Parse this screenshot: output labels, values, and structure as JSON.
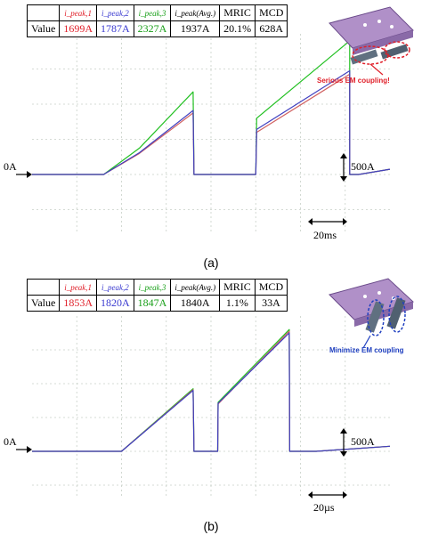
{
  "panels": [
    {
      "id": "a",
      "caption": "(a)",
      "table": {
        "row_label": "Value",
        "headers": [
          "i_peak,1",
          "i_peak,2",
          "i_peak,3",
          "i_peak(Avg.)",
          "MRIC",
          "MCD"
        ],
        "values": [
          "1699A",
          "1787A",
          "2327A",
          "1937A",
          "20.1%",
          "628A"
        ],
        "colors": [
          "#e0202a",
          "#3a3ad0",
          "#1aa01a",
          "#000000",
          "#000000",
          "#000000"
        ]
      },
      "zero_label": "0A",
      "scale_label": "500A",
      "time_label": "20ms",
      "inset_text": "Serious EM coupling!",
      "inset_color": "#e0202a"
    },
    {
      "id": "b",
      "caption": "(b)",
      "table": {
        "row_label": "Value",
        "headers": [
          "i_peak,1",
          "i_peak,2",
          "i_peak,3",
          "i_peak(Avg.)",
          "MRIC",
          "MCD"
        ],
        "values": [
          "1853A",
          "1820A",
          "1847A",
          "1840A",
          "1.1%",
          "33A"
        ],
        "colors": [
          "#e0202a",
          "#3a3ad0",
          "#1aa01a",
          "#000000",
          "#000000",
          "#000000"
        ]
      },
      "zero_label": "0A",
      "scale_label": "500A",
      "time_label": "20µs",
      "inset_text": "Minimize EM coupling",
      "inset_color": "#2040c0"
    }
  ],
  "chart_data": [
    {
      "type": "line",
      "panel": "a",
      "x_units": "divisions",
      "y_units": "divisions",
      "grid": true,
      "series": [
        {
          "color": "#22c022",
          "x": [
            0,
            1.6,
            2.4,
            3.6,
            3.62,
            4.9,
            5.0,
            5.02,
            7.1,
            7.1,
            7.3,
            8.0
          ],
          "y": [
            0,
            0,
            0.75,
            2.35,
            0,
            0,
            0,
            1.6,
            3.8,
            0,
            0,
            0.15
          ]
        },
        {
          "color": "#d06060",
          "x": [
            0,
            1.6,
            2.4,
            3.6,
            3.62,
            4.9,
            5.0,
            5.02,
            7.1,
            7.1,
            7.3,
            8.0
          ],
          "y": [
            0,
            0,
            0.6,
            1.75,
            0,
            0,
            0,
            1.2,
            2.85,
            0,
            0,
            0.15
          ]
        },
        {
          "color": "#4040c0",
          "x": [
            0,
            1.6,
            2.4,
            3.6,
            3.62,
            4.9,
            5.0,
            5.02,
            7.1,
            7.1,
            7.3,
            8.0
          ],
          "y": [
            0,
            0,
            0.62,
            1.82,
            0,
            0,
            0,
            1.28,
            2.95,
            0,
            0,
            0.15
          ]
        }
      ]
    },
    {
      "type": "line",
      "panel": "b",
      "x_units": "divisions",
      "y_units": "divisions",
      "grid": true,
      "series": [
        {
          "color": "#22c022",
          "x": [
            0,
            2.0,
            3.6,
            3.62,
            4.15,
            4.16,
            5.75,
            5.76,
            6.0,
            6.35,
            8.0
          ],
          "y": [
            0,
            0,
            1.85,
            0,
            0,
            1.45,
            3.6,
            0,
            0,
            0,
            0.15
          ]
        },
        {
          "color": "#d06060",
          "x": [
            0,
            2.0,
            3.6,
            3.62,
            4.15,
            4.16,
            5.75,
            5.76,
            6.0,
            6.35,
            8.0
          ],
          "y": [
            0,
            0,
            1.82,
            0,
            0,
            1.4,
            3.55,
            0,
            0,
            0,
            0.15
          ]
        },
        {
          "color": "#4040c0",
          "x": [
            0,
            2.0,
            3.6,
            3.62,
            4.15,
            4.16,
            5.75,
            5.76,
            6.0,
            6.35,
            8.0
          ],
          "y": [
            0,
            0,
            1.8,
            0,
            0,
            1.42,
            3.5,
            0,
            0,
            0,
            0.15
          ]
        }
      ]
    }
  ]
}
